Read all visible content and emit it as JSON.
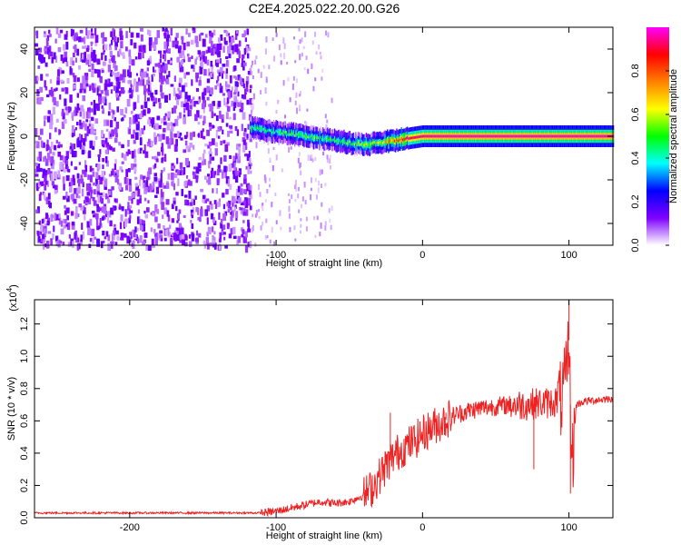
{
  "title": "C2E4.2025.022.20.00.G26",
  "chart_data": [
    {
      "type": "heatmap",
      "xlabel": "Height of straight line (km)",
      "ylabel": "Frequency (Hz)",
      "xlim": [
        -265,
        130
      ],
      "ylim": [
        -50,
        50
      ],
      "xticks": [
        -200,
        -100,
        0,
        100
      ],
      "yticks": [
        -40,
        -20,
        0,
        20,
        40
      ],
      "colorbar": {
        "label": "Normalized spectral amplitude",
        "range": [
          0,
          1
        ],
        "ticks": [
          "0.0",
          "0.2",
          "0.4",
          "0.6",
          "0.8"
        ],
        "colormap": [
          "#ffffff",
          "#7f00ff",
          "#0000ff",
          "#00ffff",
          "#00ff00",
          "#ffff00",
          "#ff8000",
          "#ff0000",
          "#ff00ff"
        ]
      },
      "ridge": {
        "description_points_x": [
          -118,
          -110,
          -100,
          -90,
          -80,
          -70,
          -60,
          -50,
          -40,
          -30,
          -20,
          -10,
          0,
          20,
          50,
          80,
          100,
          130
        ],
        "frequency_hz": [
          4,
          3,
          2,
          1,
          0,
          -1,
          -2,
          -3,
          -4,
          -3,
          -2,
          -1,
          0,
          0,
          0,
          0,
          0,
          0
        ],
        "amplitude": [
          0.5,
          0.45,
          0.45,
          0.5,
          0.5,
          0.5,
          0.45,
          0.5,
          0.55,
          0.6,
          0.75,
          0.9,
          0.95,
          0.97,
          0.97,
          0.97,
          0.97,
          0.97
        ]
      },
      "noise_region_x": [
        -265,
        -118
      ],
      "noise_amplitude": 0.1
    },
    {
      "type": "line",
      "xlabel": "Height of straight line (km)",
      "ylabel": "SNR (10 * v/v)",
      "multiplier": "(x10",
      "multiplier_exp": "4",
      "xlim": [
        -265,
        130
      ],
      "ylim": [
        0,
        1.35
      ],
      "xticks": [
        -200,
        -100,
        0,
        100
      ],
      "yticks": [
        "0.0",
        "0.2",
        "0.4",
        "0.6",
        "0.8",
        "1.0",
        "1.2"
      ],
      "series": [
        {
          "color": "#ee2222",
          "x": [
            -265,
            -240,
            -200,
            -160,
            -130,
            -110,
            -100,
            -90,
            -80,
            -70,
            -60,
            -50,
            -40,
            -35,
            -30,
            -25,
            -20,
            -15,
            -10,
            -5,
            0,
            5,
            10,
            15,
            20,
            30,
            40,
            50,
            60,
            70,
            80,
            85,
            90,
            95,
            98,
            100,
            102,
            105,
            110,
            120,
            130
          ],
          "y": [
            0.03,
            0.03,
            0.03,
            0.03,
            0.03,
            0.03,
            0.04,
            0.06,
            0.08,
            0.1,
            0.09,
            0.1,
            0.14,
            0.18,
            0.25,
            0.32,
            0.38,
            0.42,
            0.45,
            0.48,
            0.52,
            0.55,
            0.58,
            0.6,
            0.63,
            0.66,
            0.68,
            0.69,
            0.7,
            0.7,
            0.71,
            0.71,
            0.72,
            0.73,
            0.85,
            1.1,
            0.3,
            0.7,
            0.72,
            0.73,
            0.74
          ]
        }
      ],
      "spikes": [
        {
          "x": -22,
          "y": 0.65
        },
        {
          "x": 16,
          "y": 0.65
        },
        {
          "x": 76,
          "y": 0.3
        },
        {
          "x": 100,
          "y": 1.35
        },
        {
          "x": 101,
          "y": 0.15
        }
      ]
    }
  ]
}
